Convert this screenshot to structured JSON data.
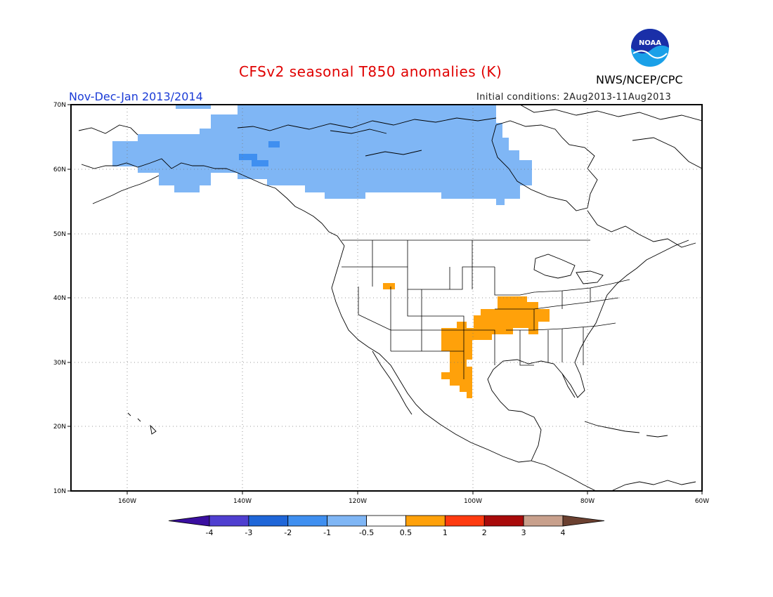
{
  "title": "CFSv2 seasonal T850 anomalies (K)",
  "period": "Nov-Dec-Jan 2013/2014",
  "initial_conditions": "Initial conditions: 2Aug2013-11Aug2013",
  "agency": "NWS/NCEP/CPC",
  "logo_text": "NOAA",
  "map": {
    "lon_range": [
      -172,
      -60
    ],
    "lat_range": [
      10,
      70
    ],
    "lat_ticks": [
      "10N",
      "20N",
      "30N",
      "40N",
      "50N",
      "60N",
      "70N"
    ],
    "lon_ticks": [
      "160W",
      "140W",
      "120W",
      "100W",
      "80W",
      "60W"
    ],
    "grid": true
  },
  "colorbar": {
    "labels": [
      "-4",
      "-3",
      "-2",
      "-1",
      "-0.5",
      "0.5",
      "1",
      "2",
      "3",
      "4"
    ],
    "colors": [
      "#3a0fa0",
      "#4f3fd0",
      "#1f66d8",
      "#3f8ff0",
      "#7fb6f5",
      "#ffffff",
      "#ffa10a",
      "#ff3b10",
      "#a80a0a",
      "#c8a08c",
      "#6b4030"
    ]
  },
  "anomaly_regions": [
    {
      "name": "alaska-canada-cool",
      "class": "-1 to -0.5",
      "color": "#7fb6f5"
    },
    {
      "name": "yukon-cold-core",
      "class": "-2 to -1",
      "color": "#3f8ff0"
    },
    {
      "name": "utah-warm",
      "class": "0.5 to 1",
      "color": "#ffa10a"
    },
    {
      "name": "texas-new-mexico-warm",
      "class": "0.5 to 1",
      "color": "#ffa10a"
    },
    {
      "name": "missouri-kentucky-warm",
      "class": "0.5 to 1",
      "color": "#ffa10a"
    }
  ]
}
